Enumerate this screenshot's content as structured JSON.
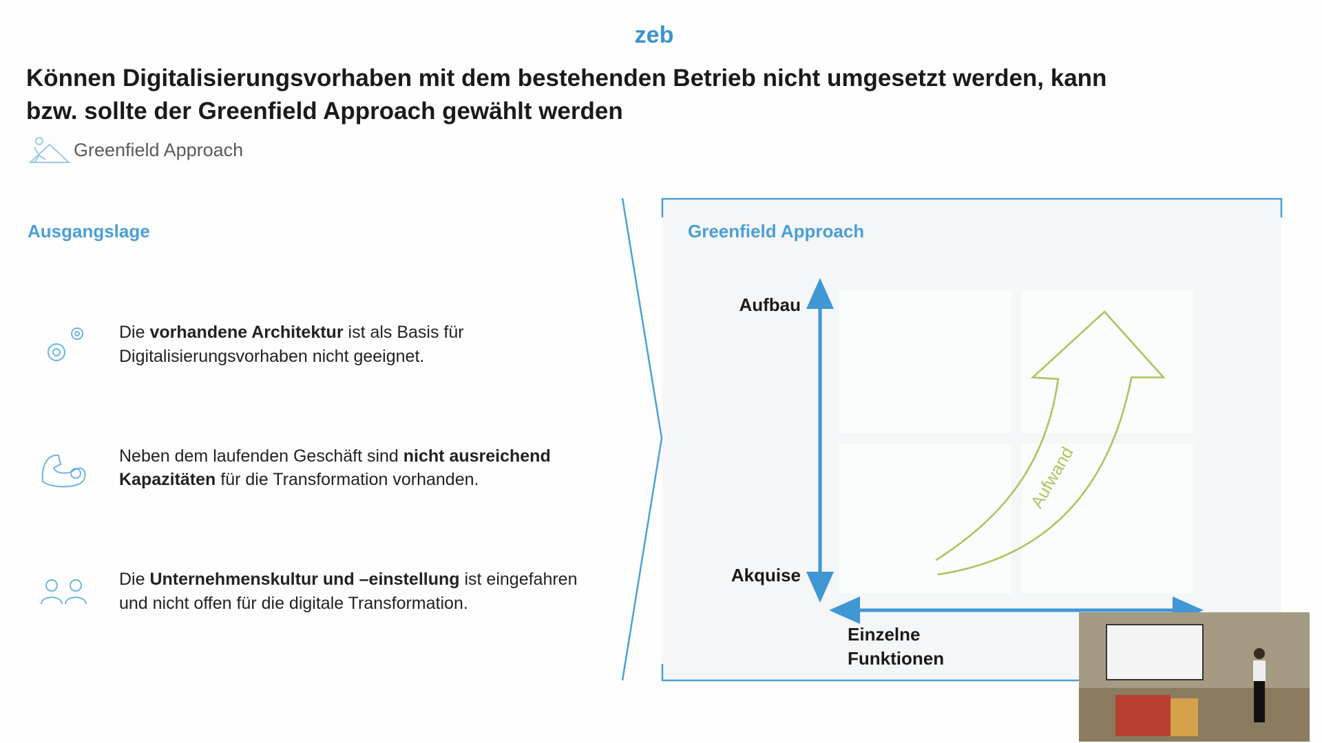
{
  "logo": "zeb",
  "title": [
    "Können Digitalisierungsvorhaben mit dem bestehenden Betrieb nicht umgesetzt werden, kann",
    "bzw. sollte der Greenfield Approach gewählt werden"
  ],
  "subtitle": "Greenfield Approach",
  "left_panel": {
    "heading": "Ausgangslage",
    "items": [
      [
        [
          {
            "text": "Die ",
            "bold": false
          },
          {
            "text": "vorhandene Architektur",
            "bold": true
          },
          {
            "text": " ist als Basis für",
            "bold": false
          }
        ],
        [
          {
            "text": "Digitalisierungsvorhaben nicht geeignet.",
            "bold": false
          }
        ]
      ],
      [
        [
          {
            "text": "Neben dem laufenden Geschäft sind ",
            "bold": false
          },
          {
            "text": "nicht ausreichend",
            "bold": true
          }
        ],
        [
          {
            "text": "Kapazitäten",
            "bold": true
          },
          {
            "text": " für die Transformation vorhanden.",
            "bold": false
          }
        ]
      ],
      [
        [
          {
            "text": "Die ",
            "bold": false
          },
          {
            "text": "Unternehmenskultur und –einstellung",
            "bold": true
          },
          {
            "text": " ist eingefahren",
            "bold": false
          }
        ],
        [
          {
            "text": "und nicht offen für die digitale Transformation.",
            "bold": false
          }
        ]
      ]
    ]
  },
  "right_panel": {
    "heading": "Greenfield Approach",
    "y_top": "Aufbau",
    "y_bottom": "Akquise",
    "x_label": [
      "Einzelne",
      "Funktionen"
    ],
    "arrow_label": "Aufwand"
  }
}
